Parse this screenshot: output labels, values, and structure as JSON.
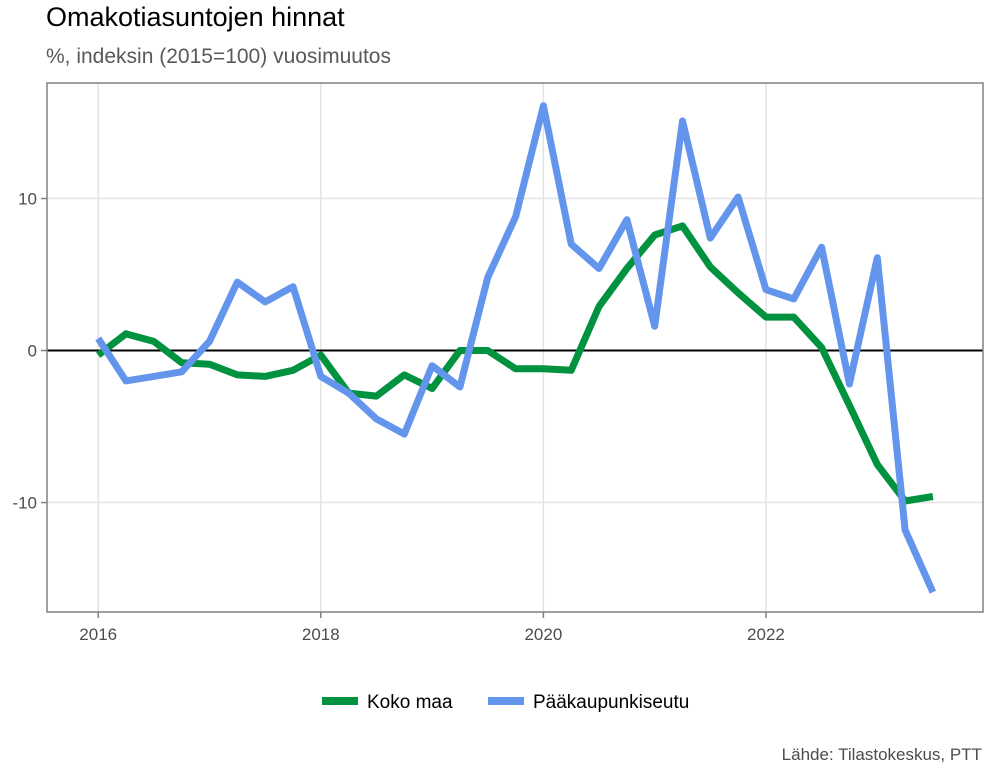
{
  "chart_data": {
    "type": "line",
    "title": "Omakotiasuntojen hinnat",
    "subtitle": "%, indeksin (2015=100) vuosimuutos",
    "caption": "Lähde: Tilastokeskus, PTT",
    "xlabel": "",
    "ylabel": "",
    "xlim": [
      2015.54,
      2023.95
    ],
    "ylim": [
      -17.2,
      17.6
    ],
    "x_ticks": [
      2016,
      2018,
      2020,
      2022
    ],
    "y_ticks": [
      -10,
      0,
      10
    ],
    "grid": true,
    "legend_position": "bottom",
    "x": [
      2016.0,
      2016.25,
      2016.5,
      2016.75,
      2017.0,
      2017.25,
      2017.5,
      2017.75,
      2018.0,
      2018.25,
      2018.5,
      2018.75,
      2019.0,
      2019.25,
      2019.5,
      2019.75,
      2020.0,
      2020.25,
      2020.5,
      2020.75,
      2021.0,
      2021.25,
      2021.5,
      2021.75,
      2022.0,
      2022.25,
      2022.5,
      2022.75,
      2023.0,
      2023.25,
      2023.5
    ],
    "series": [
      {
        "name": "Koko maa",
        "color": "#00923f",
        "values": [
          -0.3,
          1.1,
          0.6,
          -0.8,
          -0.9,
          -1.6,
          -1.7,
          -1.3,
          -0.3,
          -2.8,
          -3.0,
          -1.6,
          -2.5,
          0.0,
          0.0,
          -1.2,
          -1.2,
          -1.3,
          2.9,
          5.4,
          7.6,
          8.2,
          5.5,
          3.8,
          2.2,
          2.2,
          0.2,
          -3.6,
          -7.5,
          -9.9,
          -9.6
        ]
      },
      {
        "name": "Pääkaupunkiseutu",
        "color": "#6495ed",
        "values": [
          0.8,
          -2.0,
          -1.7,
          -1.4,
          0.6,
          4.5,
          3.2,
          4.2,
          -1.7,
          -2.8,
          -4.5,
          -5.5,
          -1.0,
          -2.4,
          4.8,
          8.8,
          16.1,
          7.0,
          5.4,
          8.6,
          1.6,
          15.1,
          7.4,
          10.1,
          4.0,
          3.4,
          6.8,
          -2.2,
          6.1,
          -11.8,
          -15.9
        ]
      }
    ]
  }
}
